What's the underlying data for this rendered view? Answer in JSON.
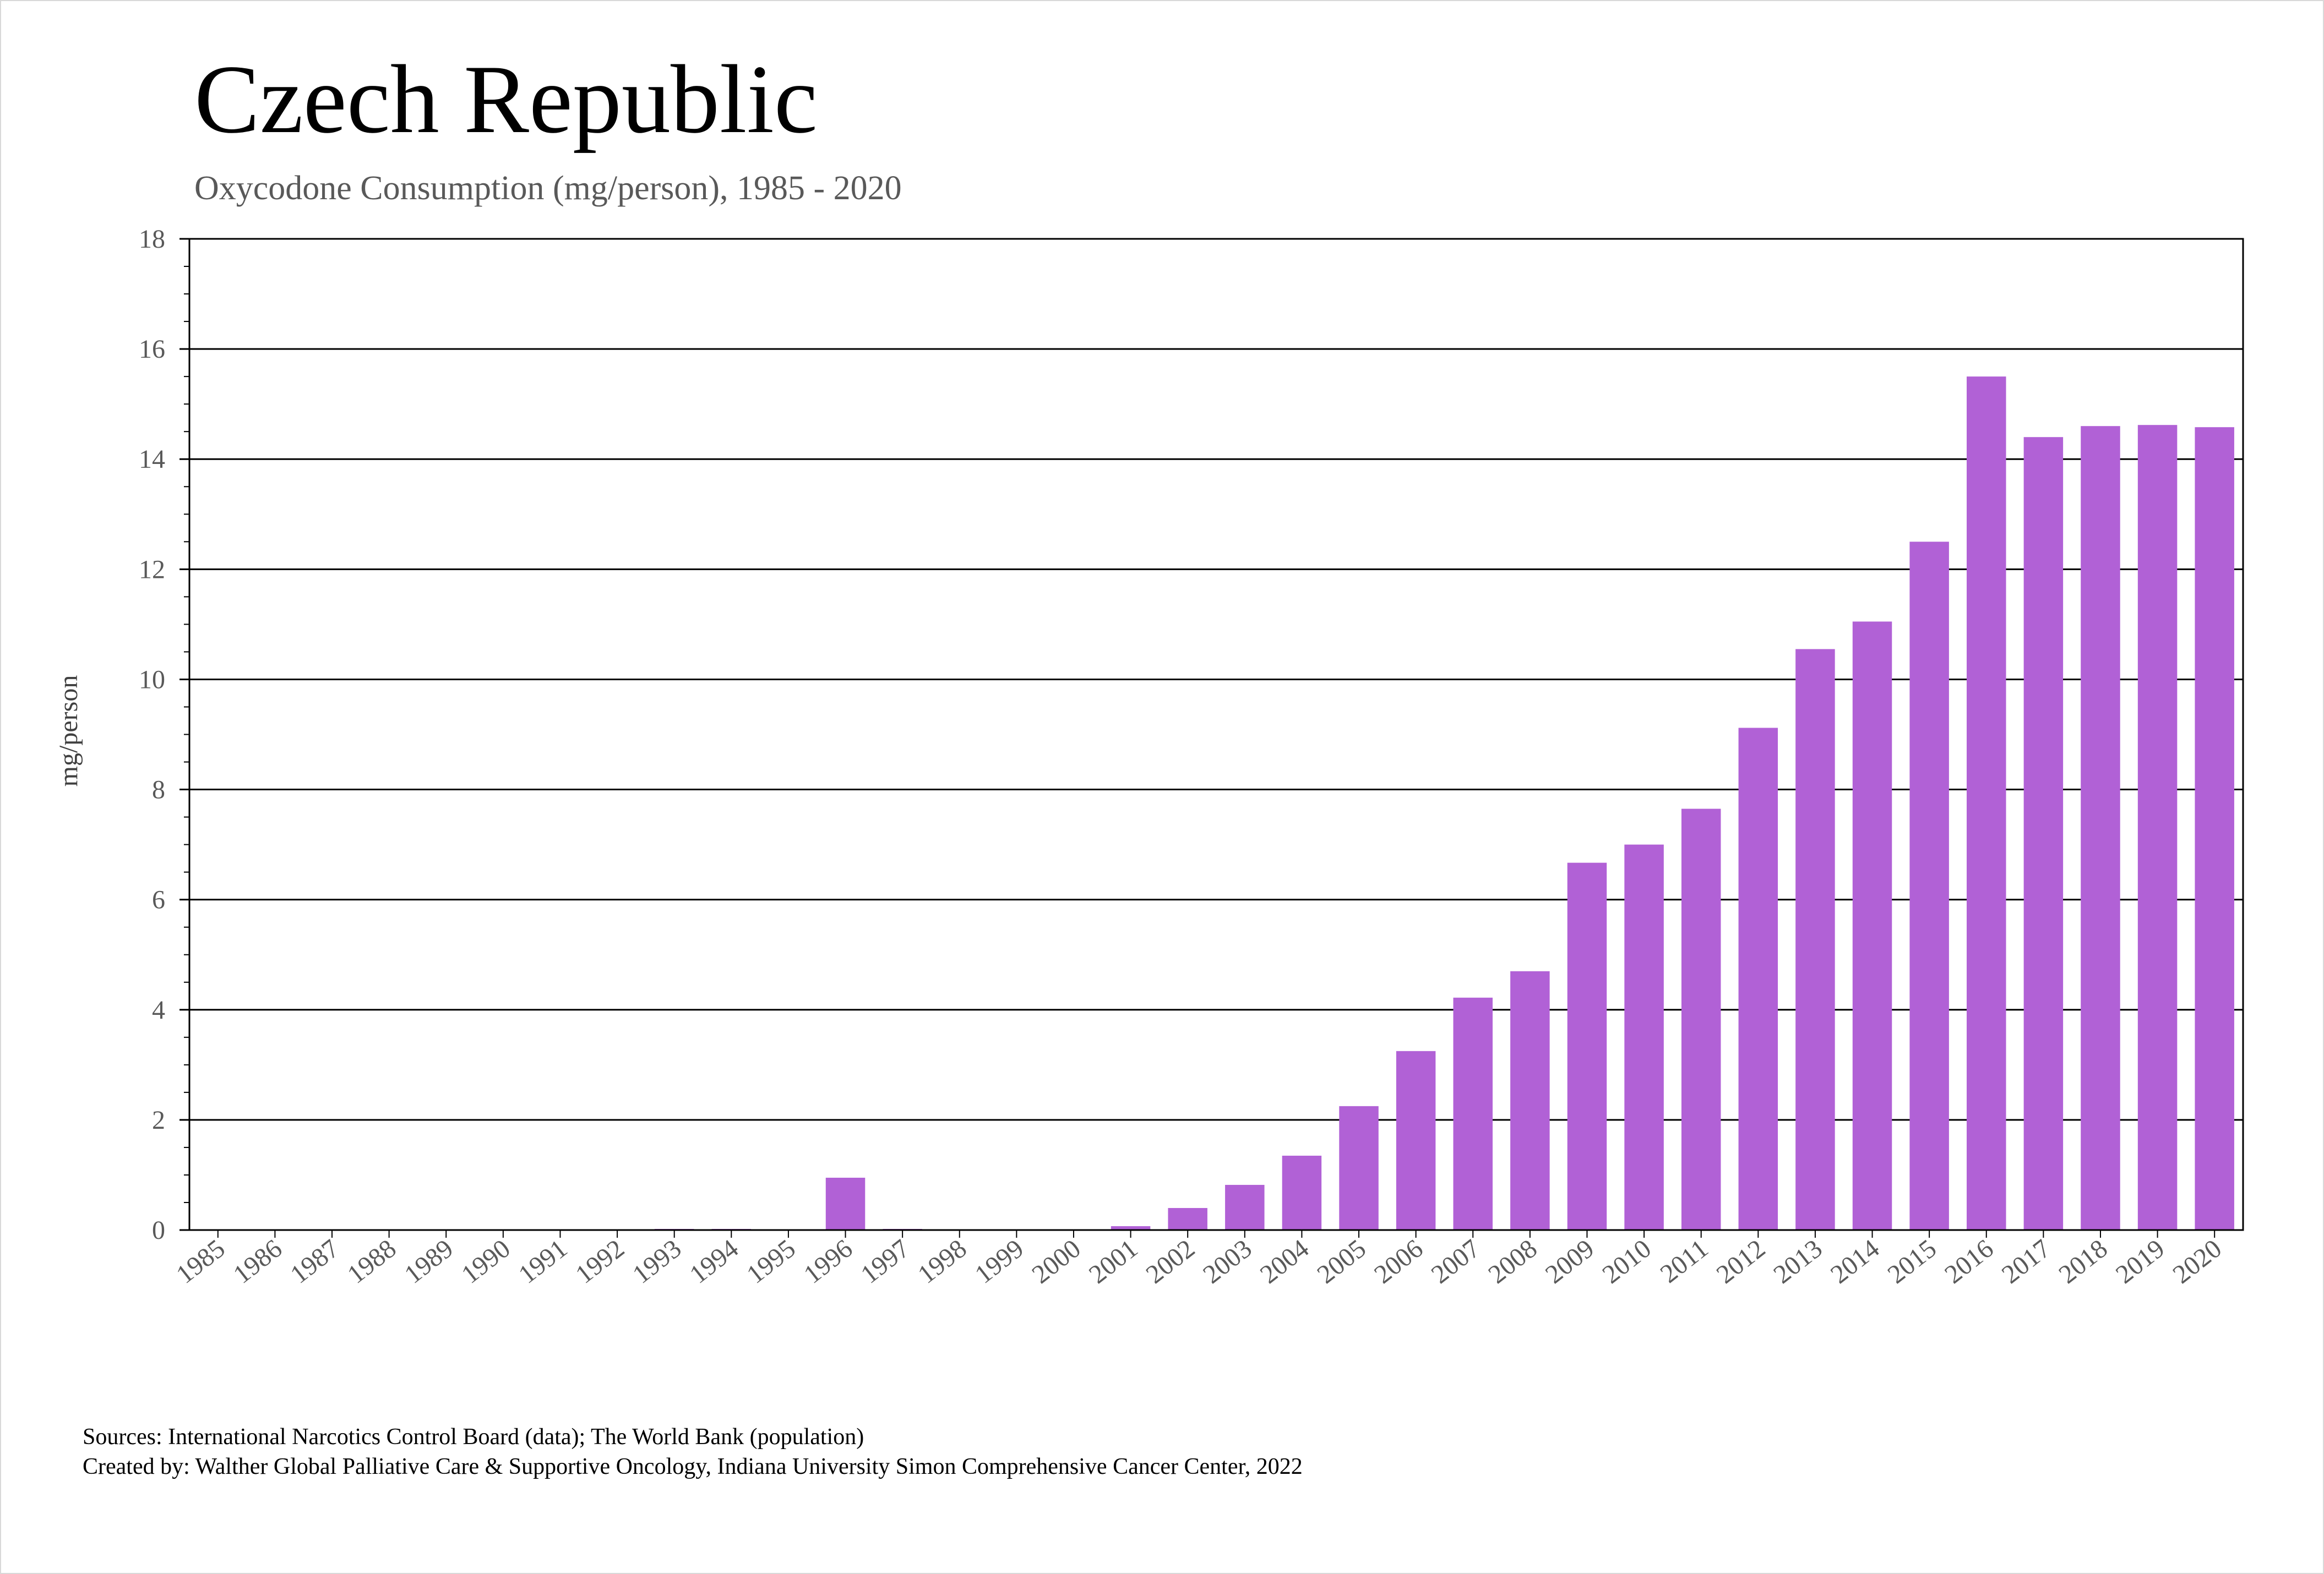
{
  "chart_data": {
    "type": "bar",
    "title": "Czech Republic",
    "subtitle": "Oxycodone Consumption (mg/person), 1985 - 2020",
    "xlabel": "",
    "ylabel": "mg/person",
    "ylim": [
      0,
      18
    ],
    "yticks": [
      0,
      2,
      4,
      6,
      8,
      10,
      12,
      14,
      16,
      18
    ],
    "grid": true,
    "legend": "none",
    "bar_color": "#b161d6",
    "categories": [
      "1985",
      "1986",
      "1987",
      "1988",
      "1989",
      "1990",
      "1991",
      "1992",
      "1993",
      "1994",
      "1995",
      "1996",
      "1997",
      "1998",
      "1999",
      "2000",
      "2001",
      "2002",
      "2003",
      "2004",
      "2005",
      "2006",
      "2007",
      "2008",
      "2009",
      "2010",
      "2011",
      "2012",
      "2013",
      "2014",
      "2015",
      "2016",
      "2017",
      "2018",
      "2019",
      "2020"
    ],
    "values": [
      0,
      0,
      0,
      0,
      0,
      0,
      0,
      0,
      0.02,
      0.02,
      0,
      0.95,
      0.02,
      0,
      0,
      0,
      0.07,
      0.4,
      0.82,
      1.35,
      2.25,
      3.25,
      4.22,
      4.7,
      6.67,
      7.0,
      7.65,
      9.12,
      10.55,
      11.05,
      12.5,
      15.5,
      14.4,
      14.6,
      14.62,
      14.58
    ]
  },
  "footer": {
    "sources": "Sources: International Narcotics Control Board (data); The World Bank (population)",
    "created_by": "Created by: Walther Global Palliative Care & Supportive Oncology, Indiana University Simon Comprehensive Cancer Center, 2022"
  }
}
